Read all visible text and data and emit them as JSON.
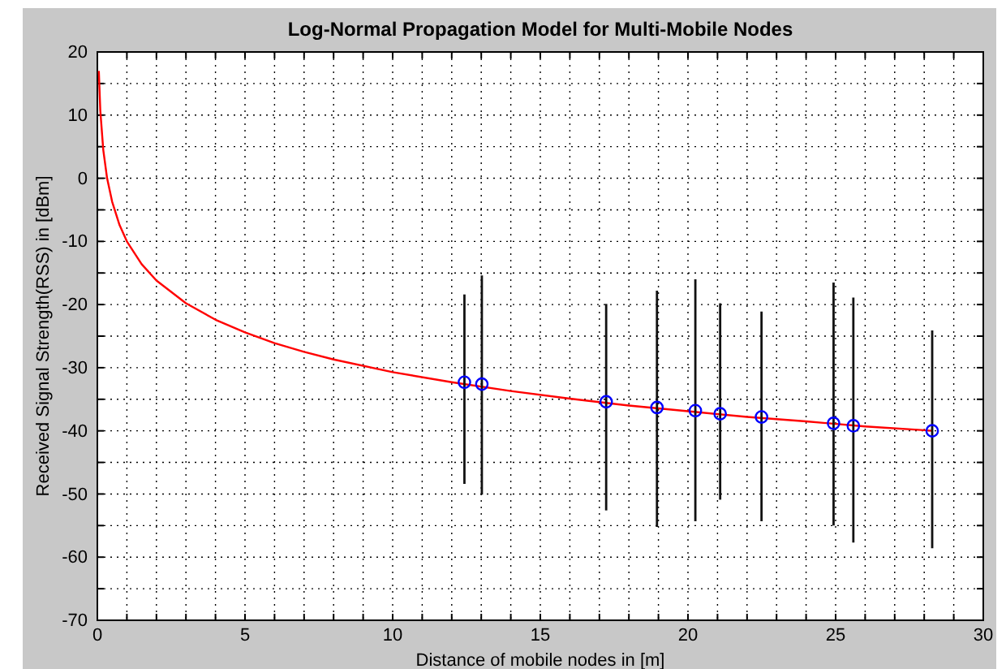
{
  "chart_data": {
    "type": "line",
    "title": "Log-Normal Propagation Model for Multi-Mobile Nodes",
    "xlabel": "Distance of mobile nodes in [m]",
    "ylabel": "Received Signal Strength(RSS) in [dBm]",
    "xlim": [
      0,
      30
    ],
    "ylim": [
      -70,
      20
    ],
    "xticks": [
      0,
      {
        "value": 1,
        "label": null
      },
      {
        "value": 2,
        "label": null
      },
      {
        "value": 3,
        "label": null
      },
      {
        "value": 4,
        "label": null
      },
      5,
      {
        "value": 6,
        "label": null
      },
      {
        "value": 7,
        "label": null
      },
      {
        "value": 8,
        "label": null
      },
      {
        "value": 9,
        "label": null
      },
      10,
      {
        "value": 11,
        "label": null
      },
      {
        "value": 12,
        "label": null
      },
      {
        "value": 13,
        "label": null
      },
      {
        "value": 14,
        "label": null
      },
      15,
      {
        "value": 16,
        "label": null
      },
      {
        "value": 17,
        "label": null
      },
      {
        "value": 18,
        "label": null
      },
      {
        "value": 19,
        "label": null
      },
      20,
      {
        "value": 21,
        "label": null
      },
      {
        "value": 22,
        "label": null
      },
      {
        "value": 23,
        "label": null
      },
      {
        "value": 24,
        "label": null
      },
      25,
      {
        "value": 26,
        "label": null
      },
      {
        "value": 27,
        "label": null
      },
      {
        "value": 28,
        "label": null
      },
      {
        "value": 29,
        "label": null
      },
      30
    ],
    "yticks": [
      -70,
      {
        "value": -65,
        "label": null
      },
      -60,
      {
        "value": -55,
        "label": null
      },
      -50,
      {
        "value": -45,
        "label": null
      },
      -40,
      {
        "value": -35,
        "label": null
      },
      -30,
      {
        "value": -25,
        "label": null
      },
      -20,
      {
        "value": -15,
        "label": null
      },
      -10,
      {
        "value": -5,
        "label": null
      },
      0,
      {
        "value": 5,
        "label": null
      },
      10,
      {
        "value": 15,
        "label": null
      },
      20
    ],
    "grid": true,
    "series": [
      {
        "color": "#ff0000",
        "marker": "none",
        "x": [
          0.05,
          0.1,
          0.2,
          0.33,
          0.5,
          0.75,
          1,
          1.5,
          2,
          3,
          4,
          5,
          6,
          7,
          8,
          10,
          12,
          14,
          16,
          18,
          20,
          22,
          24,
          26,
          28,
          28.27
        ],
        "values": [
          17,
          10.7,
          4.5,
          0,
          -3.7,
          -7.4,
          -10,
          -13.6,
          -16.2,
          -19.8,
          -22.4,
          -24.4,
          -26.1,
          -27.5,
          -28.7,
          -30.7,
          -32.3,
          -33.7,
          -34.9,
          -36,
          -36.9,
          -37.8,
          -38.5,
          -39.3,
          -39.9,
          -40
        ]
      },
      {
        "type": "scatter",
        "color": "#0000ff",
        "marker": "circle",
        "x": [
          12.43,
          13.02,
          17.23,
          18.95,
          20.25,
          21.09,
          22.49,
          24.93,
          25.6,
          28.27
        ],
        "values": [
          -32.3,
          -32.6,
          -35.4,
          -36.3,
          -36.8,
          -37.3,
          -37.8,
          -38.8,
          -39.2,
          -40
        ],
        "errors": [
          [
            -48.4,
            -18.4
          ],
          [
            -50.1,
            -15.4
          ],
          [
            -52.6,
            -19.9
          ],
          [
            -55.2,
            -17.8
          ],
          [
            -54.3,
            -16
          ],
          [
            -50.9,
            -19.8
          ],
          [
            -54.3,
            -21.1
          ],
          [
            -55,
            -16.5
          ],
          [
            -57.7,
            -18.9
          ],
          [
            -58.6,
            -24.1
          ]
        ]
      }
    ]
  }
}
